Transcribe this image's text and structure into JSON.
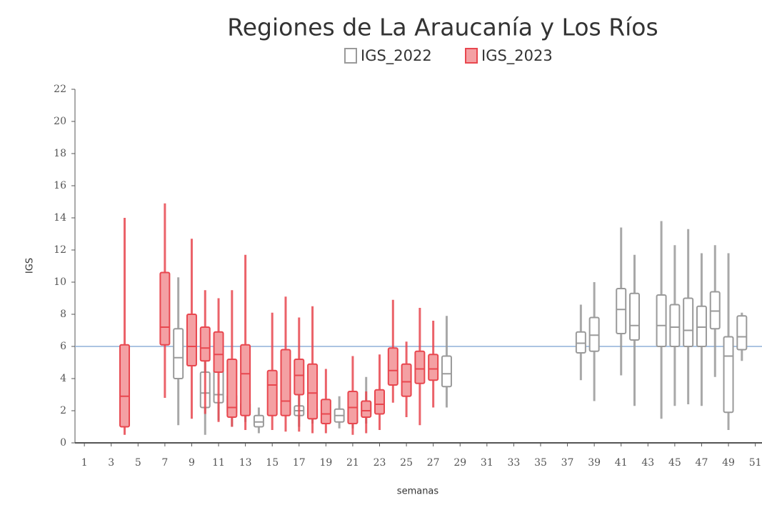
{
  "chart_data": {
    "type": "box",
    "title": "Regiones de La Araucanía y Los Ríos",
    "x_label": "semanas",
    "y_label": "IGS",
    "xlim": [
      0.3,
      51.5
    ],
    "xticks": [
      1,
      3,
      5,
      7,
      9,
      11,
      13,
      15,
      17,
      19,
      21,
      23,
      25,
      27,
      29,
      31,
      33,
      35,
      37,
      39,
      41,
      43,
      45,
      47,
      49,
      51
    ],
    "ylim": [
      0,
      22
    ],
    "yticks": [
      0,
      2,
      4,
      6,
      8,
      10,
      12,
      14,
      16,
      18,
      20,
      22
    ],
    "reference_line": 6,
    "reference_color": "#8fb0d8",
    "series": [
      {
        "name": "IGS_2022",
        "color": "#9a9a9a",
        "fill": "#ffffff",
        "x": [
          8,
          10,
          11,
          12,
          13,
          14,
          17,
          18,
          20,
          21,
          22,
          28,
          38,
          39,
          41,
          42,
          44,
          45,
          46,
          47,
          48,
          49,
          50
        ],
        "min": [
          1.1,
          0.5,
          1.4,
          1.0,
          1.3,
          0.6,
          1.0,
          1.2,
          0.9,
          0.9,
          1.2,
          2.2,
          3.9,
          2.6,
          4.2,
          2.3,
          1.5,
          2.3,
          2.4,
          2.3,
          4.1,
          0.8,
          5.1
        ],
        "q1": [
          4.0,
          2.2,
          2.5,
          1.8,
          1.8,
          1.0,
          1.7,
          1.5,
          1.3,
          1.2,
          1.7,
          3.5,
          5.6,
          5.7,
          6.8,
          6.4,
          6.0,
          6.0,
          6.0,
          6.0,
          7.1,
          1.9,
          5.8
        ],
        "median": [
          5.3,
          3.1,
          3.0,
          2.2,
          2.0,
          1.3,
          2.0,
          1.8,
          1.7,
          1.6,
          2.1,
          4.3,
          6.2,
          6.7,
          8.3,
          7.3,
          7.3,
          7.2,
          7.0,
          7.2,
          8.2,
          5.4,
          6.6
        ],
        "q3": [
          7.1,
          4.4,
          4.6,
          3.0,
          2.5,
          1.7,
          2.3,
          2.2,
          2.1,
          2.1,
          2.6,
          5.4,
          6.9,
          7.8,
          9.6,
          9.3,
          9.2,
          8.6,
          9.0,
          8.5,
          9.4,
          6.6,
          7.9
        ],
        "max": [
          10.3,
          7.0,
          6.8,
          4.5,
          3.5,
          2.2,
          3.0,
          3.0,
          2.9,
          3.0,
          4.1,
          7.9,
          8.6,
          10.0,
          13.4,
          11.7,
          13.8,
          12.3,
          13.3,
          11.8,
          12.3,
          11.8,
          8.1
        ]
      },
      {
        "name": "IGS_2023",
        "color": "#e8474f",
        "fill": "#f4a0a3",
        "x": [
          4,
          7,
          9,
          10,
          11,
          12,
          13,
          15,
          16,
          17,
          18,
          19,
          21,
          22,
          23,
          24,
          25,
          26,
          27
        ],
        "min": [
          0.5,
          2.8,
          1.5,
          1.8,
          1.3,
          1.0,
          0.8,
          0.8,
          0.7,
          0.7,
          0.6,
          0.6,
          0.5,
          0.6,
          0.8,
          2.5,
          1.6,
          1.1,
          2.2
        ],
        "q1": [
          1.0,
          6.1,
          4.8,
          5.1,
          4.4,
          1.6,
          1.7,
          1.7,
          1.7,
          3.0,
          1.5,
          1.2,
          1.2,
          1.6,
          1.8,
          3.6,
          2.9,
          3.7,
          3.9
        ],
        "median": [
          2.9,
          7.2,
          6.0,
          5.9,
          5.5,
          2.2,
          4.3,
          3.6,
          2.6,
          4.2,
          3.1,
          1.8,
          2.2,
          2.0,
          2.4,
          4.5,
          3.8,
          4.6,
          4.6
        ],
        "q3": [
          6.1,
          10.6,
          8.0,
          7.2,
          6.9,
          5.2,
          6.1,
          4.5,
          5.8,
          5.2,
          4.9,
          2.7,
          3.2,
          2.6,
          3.3,
          5.9,
          4.9,
          5.7,
          5.5
        ],
        "max": [
          14.0,
          14.9,
          12.7,
          9.5,
          9.0,
          9.5,
          11.7,
          8.1,
          9.1,
          7.8,
          8.5,
          4.6,
          5.4,
          3.2,
          5.5,
          8.9,
          6.3,
          8.4,
          7.6
        ]
      }
    ]
  }
}
